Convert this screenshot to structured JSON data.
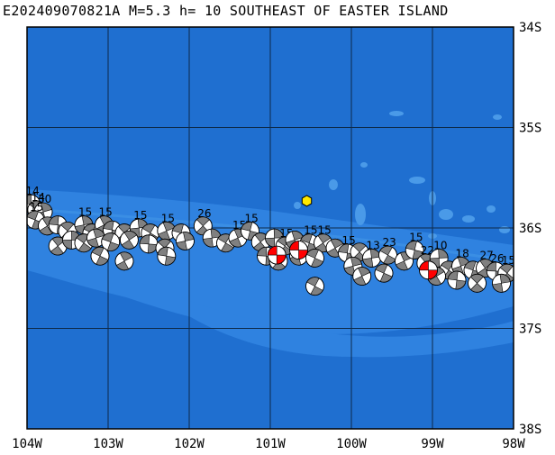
{
  "title": "E202409070821A M=5.3 h= 10 SOUTHEAST OF EASTER ISLAND",
  "lon_ticks": [
    "104W",
    "103W",
    "102W",
    "101W",
    "100W",
    "99W",
    "98W"
  ],
  "lat_ticks": [
    "34S",
    "35S",
    "36S",
    "37S",
    "38S"
  ],
  "extent": {
    "lon_west": -104,
    "lon_east": -98,
    "lat_north": -34,
    "lat_south": -38
  },
  "colors": {
    "ocean_deep": "#1f6fd0",
    "ridge_band": "#2f82e0",
    "rift_band": "#3a8ee4",
    "grid": "#0d2a4a",
    "epicenter": "#ffe800",
    "mechanism_history": "#808080",
    "mechanism_recent": "#ff0000"
  },
  "epicenter": {
    "lon": -100.55,
    "lat": -35.73
  },
  "events": [
    {
      "lon": -103.95,
      "lat": -35.76,
      "depth": "14"
    },
    {
      "lon": -103.88,
      "lat": -35.82,
      "depth": "14"
    },
    {
      "lon": -103.8,
      "lat": -35.84,
      "depth": "30"
    },
    {
      "lon": -103.9,
      "lat": -35.92,
      "depth": "15"
    },
    {
      "lon": -103.75,
      "lat": -35.98,
      "depth": ""
    },
    {
      "lon": -103.62,
      "lat": -35.97,
      "depth": ""
    },
    {
      "lon": -103.5,
      "lat": -36.03,
      "depth": ""
    },
    {
      "lon": -103.3,
      "lat": -35.97,
      "depth": "15"
    },
    {
      "lon": -103.2,
      "lat": -36.05,
      "depth": ""
    },
    {
      "lon": -103.05,
      "lat": -35.97,
      "depth": "15"
    },
    {
      "lon": -102.95,
      "lat": -36.02,
      "depth": ""
    },
    {
      "lon": -102.8,
      "lat": -36.05,
      "depth": ""
    },
    {
      "lon": -102.62,
      "lat": -36.0,
      "depth": "15"
    },
    {
      "lon": -102.48,
      "lat": -36.05,
      "depth": ""
    },
    {
      "lon": -102.28,
      "lat": -36.03,
      "depth": "15"
    },
    {
      "lon": -102.1,
      "lat": -36.05,
      "depth": ""
    },
    {
      "lon": -103.62,
      "lat": -36.18,
      "depth": ""
    },
    {
      "lon": -103.45,
      "lat": -36.12,
      "depth": ""
    },
    {
      "lon": -103.3,
      "lat": -36.15,
      "depth": ""
    },
    {
      "lon": -103.15,
      "lat": -36.1,
      "depth": ""
    },
    {
      "lon": -102.97,
      "lat": -36.14,
      "depth": ""
    },
    {
      "lon": -102.74,
      "lat": -36.12,
      "depth": ""
    },
    {
      "lon": -102.5,
      "lat": -36.16,
      "depth": ""
    },
    {
      "lon": -102.3,
      "lat": -36.2,
      "depth": ""
    },
    {
      "lon": -102.05,
      "lat": -36.13,
      "depth": ""
    },
    {
      "lon": -103.1,
      "lat": -36.28,
      "depth": ""
    },
    {
      "lon": -102.8,
      "lat": -36.33,
      "depth": ""
    },
    {
      "lon": -102.28,
      "lat": -36.28,
      "depth": ""
    },
    {
      "lon": -101.83,
      "lat": -35.98,
      "depth": "26"
    },
    {
      "lon": -101.72,
      "lat": -36.1,
      "depth": ""
    },
    {
      "lon": -101.55,
      "lat": -36.15,
      "depth": ""
    },
    {
      "lon": -101.4,
      "lat": -36.1,
      "depth": "15"
    },
    {
      "lon": -101.25,
      "lat": -36.03,
      "depth": "15"
    },
    {
      "lon": -101.12,
      "lat": -36.14,
      "depth": ""
    },
    {
      "lon": -100.95,
      "lat": -36.1,
      "depth": ""
    },
    {
      "lon": -100.82,
      "lat": -36.18,
      "depth": "15"
    },
    {
      "lon": -100.7,
      "lat": -36.12,
      "depth": ""
    },
    {
      "lon": -100.52,
      "lat": -36.15,
      "depth": "15"
    },
    {
      "lon": -100.35,
      "lat": -36.15,
      "depth": "15"
    },
    {
      "lon": -101.05,
      "lat": -36.28,
      "depth": ""
    },
    {
      "lon": -100.9,
      "lat": -36.33,
      "depth": ""
    },
    {
      "lon": -100.65,
      "lat": -36.28,
      "depth": ""
    },
    {
      "lon": -100.45,
      "lat": -36.3,
      "depth": ""
    },
    {
      "lon": -100.2,
      "lat": -36.2,
      "depth": ""
    },
    {
      "lon": -100.05,
      "lat": -36.25,
      "depth": "15"
    },
    {
      "lon": -99.9,
      "lat": -36.24,
      "depth": ""
    },
    {
      "lon": -99.75,
      "lat": -36.3,
      "depth": "13"
    },
    {
      "lon": -99.55,
      "lat": -36.27,
      "depth": "23"
    },
    {
      "lon": -99.35,
      "lat": -36.33,
      "depth": ""
    },
    {
      "lon": -99.22,
      "lat": -36.22,
      "depth": "15"
    },
    {
      "lon": -99.08,
      "lat": -36.35,
      "depth": "22"
    },
    {
      "lon": -98.92,
      "lat": -36.3,
      "depth": "10"
    },
    {
      "lon": -98.8,
      "lat": -36.42,
      "depth": ""
    },
    {
      "lon": -98.65,
      "lat": -36.38,
      "depth": "18"
    },
    {
      "lon": -98.5,
      "lat": -36.42,
      "depth": ""
    },
    {
      "lon": -98.35,
      "lat": -36.4,
      "depth": "27"
    },
    {
      "lon": -98.22,
      "lat": -36.43,
      "depth": "26"
    },
    {
      "lon": -98.08,
      "lat": -36.45,
      "depth": "15"
    },
    {
      "lon": -99.98,
      "lat": -36.38,
      "depth": ""
    },
    {
      "lon": -99.6,
      "lat": -36.45,
      "depth": ""
    },
    {
      "lon": -98.95,
      "lat": -36.48,
      "depth": ""
    },
    {
      "lon": -98.7,
      "lat": -36.52,
      "depth": ""
    },
    {
      "lon": -98.45,
      "lat": -36.55,
      "depth": ""
    },
    {
      "lon": -98.15,
      "lat": -36.55,
      "depth": ""
    },
    {
      "lon": -100.45,
      "lat": -36.58,
      "depth": ""
    },
    {
      "lon": -99.87,
      "lat": -36.48,
      "depth": ""
    }
  ],
  "recent_events": [
    {
      "lon": -100.92,
      "lat": -36.27
    },
    {
      "lon": -100.65,
      "lat": -36.22
    },
    {
      "lon": -99.05,
      "lat": -36.42
    }
  ]
}
